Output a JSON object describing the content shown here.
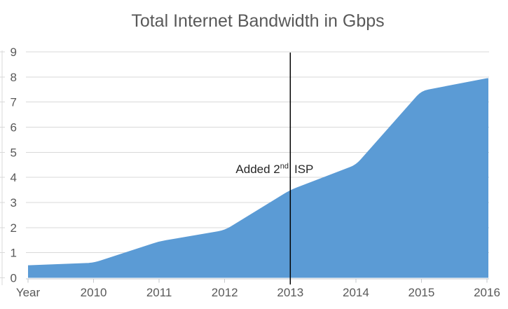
{
  "chart_data": {
    "type": "area",
    "title": "Total Internet Bandwidth in Gbps",
    "categories": [
      "Year",
      "2010",
      "2011",
      "2012",
      "2013",
      "2014",
      "2015",
      "2016"
    ],
    "values": [
      0.5,
      0.6,
      1.45,
      1.9,
      3.5,
      4.5,
      7.45,
      7.95
    ],
    "xlabel": "",
    "ylabel": "",
    "ylim": [
      0,
      9
    ],
    "y_tick_labels": [
      "0",
      "1",
      "2",
      "3",
      "4",
      "5",
      "6",
      "7",
      "8",
      "9"
    ],
    "grid": "horizontal",
    "legend": "none",
    "annotation": {
      "left_text": "Added 2",
      "superscript": "nd",
      "right_text": "ISP",
      "at_category": "2013"
    },
    "colors": {
      "area_fill": "#5B9BD5",
      "gridline": "#D9D9D9",
      "axis_line": "#C6C9CC",
      "tick_text": "#595959",
      "title_text": "#595959",
      "annotation_line": "#000000",
      "annotation_text": "#262626",
      "background": "#FFFFFF"
    }
  }
}
